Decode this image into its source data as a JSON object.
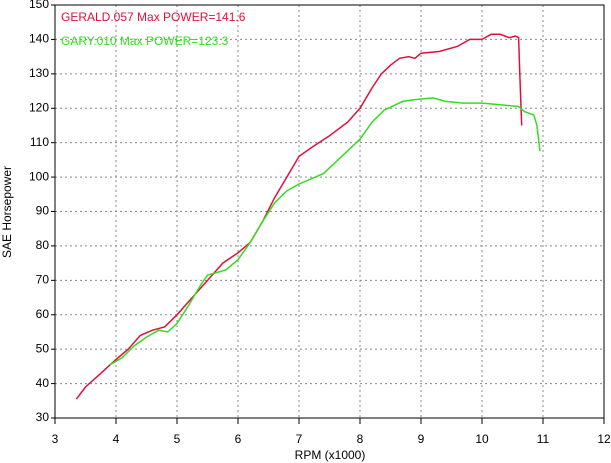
{
  "chart_data": {
    "type": "line",
    "x_label": "RPM (x1000)",
    "y_label": "SAE Horsepower",
    "xlim": [
      3,
      12
    ],
    "xticks": [
      3,
      4,
      5,
      6,
      7,
      8,
      9,
      10,
      11,
      12
    ],
    "ylim": [
      30,
      150
    ],
    "yticks": [
      30,
      40,
      50,
      60,
      70,
      80,
      90,
      100,
      110,
      120,
      130,
      140,
      150
    ],
    "grid": true,
    "series": [
      {
        "name": "GERALD.057  Max POWER=141.6",
        "color": "#e0103c",
        "x": [
          3.35,
          3.5,
          3.75,
          4.0,
          4.2,
          4.4,
          4.6,
          4.8,
          5.0,
          5.2,
          5.4,
          5.6,
          5.75,
          6.0,
          6.2,
          6.4,
          6.6,
          6.8,
          7.0,
          7.2,
          7.5,
          7.8,
          8.0,
          8.2,
          8.35,
          8.5,
          8.65,
          8.8,
          8.9,
          9.0,
          9.3,
          9.6,
          9.8,
          10.0,
          10.15,
          10.3,
          10.45,
          10.55,
          10.6,
          10.62,
          10.65
        ],
        "values": [
          35.5,
          39,
          43,
          47,
          50,
          54,
          55.5,
          56.5,
          60,
          64,
          68,
          72,
          75,
          78,
          81,
          87,
          94,
          100,
          106,
          108.5,
          112,
          116,
          120,
          126,
          130,
          132.5,
          134.5,
          135,
          134.5,
          136,
          136.5,
          138,
          140,
          140,
          141.5,
          141.5,
          140.5,
          141,
          140.5,
          130,
          115
        ]
      },
      {
        "name": "GARY.010  Max POWER=123.3",
        "color": "#33dd22",
        "x": [
          3.9,
          4.1,
          4.3,
          4.5,
          4.7,
          4.85,
          5.0,
          5.2,
          5.4,
          5.5,
          5.8,
          6.0,
          6.2,
          6.4,
          6.6,
          6.8,
          7.0,
          7.2,
          7.4,
          7.7,
          8.0,
          8.2,
          8.4,
          8.7,
          8.9,
          9.2,
          9.4,
          9.7,
          10.0,
          10.3,
          10.6,
          10.7,
          10.85,
          10.9,
          10.95
        ],
        "values": [
          45.5,
          47.5,
          51,
          53.5,
          55.5,
          55,
          57.5,
          63,
          69,
          71.5,
          73,
          76,
          81,
          87,
          92.5,
          96,
          98,
          99.5,
          101,
          106,
          111,
          116,
          119.5,
          122,
          122.5,
          123,
          122,
          121.5,
          121.5,
          121,
          120.5,
          119,
          118,
          115,
          107.5
        ]
      }
    ]
  }
}
